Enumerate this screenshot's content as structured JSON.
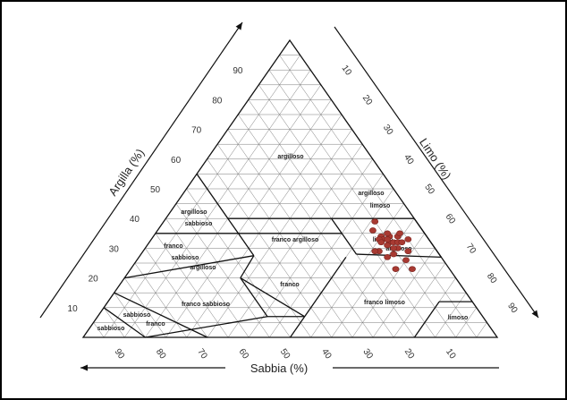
{
  "chart_data": {
    "type": "scatter",
    "subtype": "ternary-soil-texture",
    "title": "",
    "axes": {
      "clay": {
        "label": "Argilla (%)",
        "ticks": [
          "90",
          "80",
          "70",
          "60",
          "50",
          "40",
          "30",
          "20",
          "10"
        ]
      },
      "silt": {
        "label": "Limo (%)",
        "ticks": [
          "10",
          "20",
          "30",
          "40",
          "50",
          "60",
          "70",
          "80",
          "90"
        ]
      },
      "sand": {
        "label": "Sabbia (%)",
        "ticks": [
          "90",
          "80",
          "70",
          "60",
          "50",
          "40",
          "30",
          "20",
          "10"
        ]
      }
    },
    "grid": true,
    "point_color": "#a83a32",
    "classes": [
      {
        "id": "argilloso",
        "lines": [
          "argilloso"
        ]
      },
      {
        "id": "argilloso-limoso",
        "lines": [
          "argilloso",
          "limoso"
        ]
      },
      {
        "id": "argilloso-sabbioso",
        "lines": [
          "argilloso",
          "sabbioso"
        ]
      },
      {
        "id": "franco-argilloso",
        "lines": [
          "franco argilloso"
        ]
      },
      {
        "id": "franco-limoso-argilloso",
        "lines": [
          "limoso",
          "argilloso"
        ]
      },
      {
        "id": "franco-sabbioso-argilloso",
        "lines": [
          "franco",
          "sabbioso",
          "argilloso"
        ]
      },
      {
        "id": "franco",
        "lines": [
          "franco"
        ]
      },
      {
        "id": "franco-sabbioso",
        "lines": [
          "franco sabbioso"
        ]
      },
      {
        "id": "franco-limoso",
        "lines": [
          "franco limoso"
        ]
      },
      {
        "id": "limoso",
        "lines": [
          "limoso"
        ]
      },
      {
        "id": "sabbioso-franco",
        "lines": [
          "sabbioso",
          "franco"
        ]
      },
      {
        "id": "sabbioso",
        "lines": [
          "sabbioso"
        ]
      }
    ],
    "points": [
      {
        "sand": 12,
        "silt": 52,
        "clay": 36
      },
      {
        "sand": 10,
        "silt": 51,
        "clay": 39
      },
      {
        "sand": 11,
        "silt": 55,
        "clay": 34
      },
      {
        "sand": 9,
        "silt": 57,
        "clay": 34
      },
      {
        "sand": 11,
        "silt": 56,
        "clay": 33
      },
      {
        "sand": 10,
        "silt": 58,
        "clay": 32
      },
      {
        "sand": 9,
        "silt": 59,
        "clay": 32
      },
      {
        "sand": 8,
        "silt": 60,
        "clay": 32
      },
      {
        "sand": 10,
        "silt": 57,
        "clay": 33
      },
      {
        "sand": 12,
        "silt": 55,
        "clay": 33
      },
      {
        "sand": 7,
        "silt": 59,
        "clay": 34
      },
      {
        "sand": 9,
        "silt": 56,
        "clay": 35
      },
      {
        "sand": 6,
        "silt": 59,
        "clay": 35
      },
      {
        "sand": 11,
        "silt": 58,
        "clay": 31
      },
      {
        "sand": 9,
        "silt": 61,
        "clay": 30
      },
      {
        "sand": 12,
        "silt": 56,
        "clay": 32
      },
      {
        "sand": 7,
        "silt": 61,
        "clay": 32
      },
      {
        "sand": 5,
        "silt": 62,
        "clay": 33
      },
      {
        "sand": 14,
        "silt": 57,
        "clay": 29
      },
      {
        "sand": 11,
        "silt": 61,
        "clay": 28
      },
      {
        "sand": 13,
        "silt": 60,
        "clay": 27
      },
      {
        "sand": 9,
        "silt": 65,
        "clay": 26
      },
      {
        "sand": 15,
        "silt": 56,
        "clay": 29
      },
      {
        "sand": 7,
        "silt": 64,
        "clay": 29
      },
      {
        "sand": 10,
        "silt": 60,
        "clay": 30
      },
      {
        "sand": 13,
        "silt": 64,
        "clay": 23
      },
      {
        "sand": 9,
        "silt": 68,
        "clay": 23
      }
    ]
  }
}
